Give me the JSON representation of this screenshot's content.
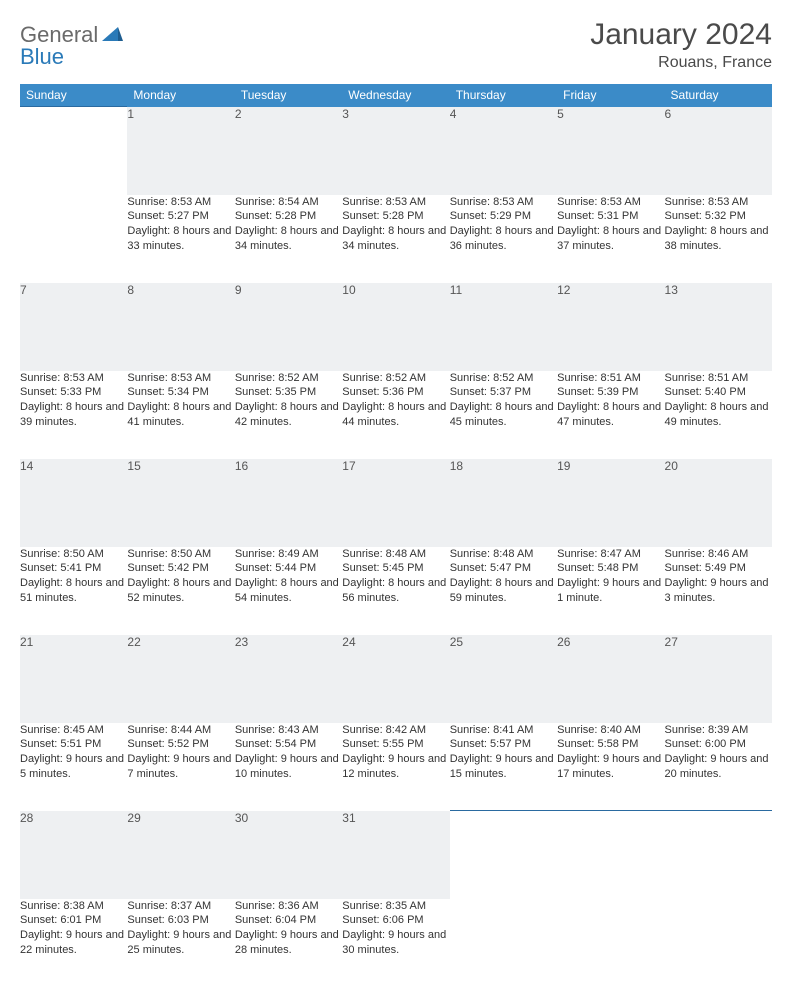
{
  "logo": {
    "part1": "General",
    "part2": "Blue"
  },
  "title": "January 2024",
  "location": "Rouans, France",
  "colors": {
    "header_bg": "#3b8bc8",
    "header_text": "#ffffff",
    "daynum_bg": "#eef0f2",
    "row_border": "#2a6aa0",
    "body_text": "#333333",
    "logo_gray": "#6a6a6a",
    "logo_blue": "#2a7ab8"
  },
  "weekdays": [
    "Sunday",
    "Monday",
    "Tuesday",
    "Wednesday",
    "Thursday",
    "Friday",
    "Saturday"
  ],
  "weeks": [
    [
      null,
      {
        "n": "1",
        "sr": "8:53 AM",
        "ss": "5:27 PM",
        "dl": "8 hours and 33 minutes."
      },
      {
        "n": "2",
        "sr": "8:54 AM",
        "ss": "5:28 PM",
        "dl": "8 hours and 34 minutes."
      },
      {
        "n": "3",
        "sr": "8:53 AM",
        "ss": "5:28 PM",
        "dl": "8 hours and 34 minutes."
      },
      {
        "n": "4",
        "sr": "8:53 AM",
        "ss": "5:29 PM",
        "dl": "8 hours and 36 minutes."
      },
      {
        "n": "5",
        "sr": "8:53 AM",
        "ss": "5:31 PM",
        "dl": "8 hours and 37 minutes."
      },
      {
        "n": "6",
        "sr": "8:53 AM",
        "ss": "5:32 PM",
        "dl": "8 hours and 38 minutes."
      }
    ],
    [
      {
        "n": "7",
        "sr": "8:53 AM",
        "ss": "5:33 PM",
        "dl": "8 hours and 39 minutes."
      },
      {
        "n": "8",
        "sr": "8:53 AM",
        "ss": "5:34 PM",
        "dl": "8 hours and 41 minutes."
      },
      {
        "n": "9",
        "sr": "8:52 AM",
        "ss": "5:35 PM",
        "dl": "8 hours and 42 minutes."
      },
      {
        "n": "10",
        "sr": "8:52 AM",
        "ss": "5:36 PM",
        "dl": "8 hours and 44 minutes."
      },
      {
        "n": "11",
        "sr": "8:52 AM",
        "ss": "5:37 PM",
        "dl": "8 hours and 45 minutes."
      },
      {
        "n": "12",
        "sr": "8:51 AM",
        "ss": "5:39 PM",
        "dl": "8 hours and 47 minutes."
      },
      {
        "n": "13",
        "sr": "8:51 AM",
        "ss": "5:40 PM",
        "dl": "8 hours and 49 minutes."
      }
    ],
    [
      {
        "n": "14",
        "sr": "8:50 AM",
        "ss": "5:41 PM",
        "dl": "8 hours and 51 minutes."
      },
      {
        "n": "15",
        "sr": "8:50 AM",
        "ss": "5:42 PM",
        "dl": "8 hours and 52 minutes."
      },
      {
        "n": "16",
        "sr": "8:49 AM",
        "ss": "5:44 PM",
        "dl": "8 hours and 54 minutes."
      },
      {
        "n": "17",
        "sr": "8:48 AM",
        "ss": "5:45 PM",
        "dl": "8 hours and 56 minutes."
      },
      {
        "n": "18",
        "sr": "8:48 AM",
        "ss": "5:47 PM",
        "dl": "8 hours and 59 minutes."
      },
      {
        "n": "19",
        "sr": "8:47 AM",
        "ss": "5:48 PM",
        "dl": "9 hours and 1 minute."
      },
      {
        "n": "20",
        "sr": "8:46 AM",
        "ss": "5:49 PM",
        "dl": "9 hours and 3 minutes."
      }
    ],
    [
      {
        "n": "21",
        "sr": "8:45 AM",
        "ss": "5:51 PM",
        "dl": "9 hours and 5 minutes."
      },
      {
        "n": "22",
        "sr": "8:44 AM",
        "ss": "5:52 PM",
        "dl": "9 hours and 7 minutes."
      },
      {
        "n": "23",
        "sr": "8:43 AM",
        "ss": "5:54 PM",
        "dl": "9 hours and 10 minutes."
      },
      {
        "n": "24",
        "sr": "8:42 AM",
        "ss": "5:55 PM",
        "dl": "9 hours and 12 minutes."
      },
      {
        "n": "25",
        "sr": "8:41 AM",
        "ss": "5:57 PM",
        "dl": "9 hours and 15 minutes."
      },
      {
        "n": "26",
        "sr": "8:40 AM",
        "ss": "5:58 PM",
        "dl": "9 hours and 17 minutes."
      },
      {
        "n": "27",
        "sr": "8:39 AM",
        "ss": "6:00 PM",
        "dl": "9 hours and 20 minutes."
      }
    ],
    [
      {
        "n": "28",
        "sr": "8:38 AM",
        "ss": "6:01 PM",
        "dl": "9 hours and 22 minutes."
      },
      {
        "n": "29",
        "sr": "8:37 AM",
        "ss": "6:03 PM",
        "dl": "9 hours and 25 minutes."
      },
      {
        "n": "30",
        "sr": "8:36 AM",
        "ss": "6:04 PM",
        "dl": "9 hours and 28 minutes."
      },
      {
        "n": "31",
        "sr": "8:35 AM",
        "ss": "6:06 PM",
        "dl": "9 hours and 30 minutes."
      },
      null,
      null,
      null
    ]
  ],
  "labels": {
    "sunrise": "Sunrise: ",
    "sunset": "Sunset: ",
    "daylight": "Daylight: "
  }
}
